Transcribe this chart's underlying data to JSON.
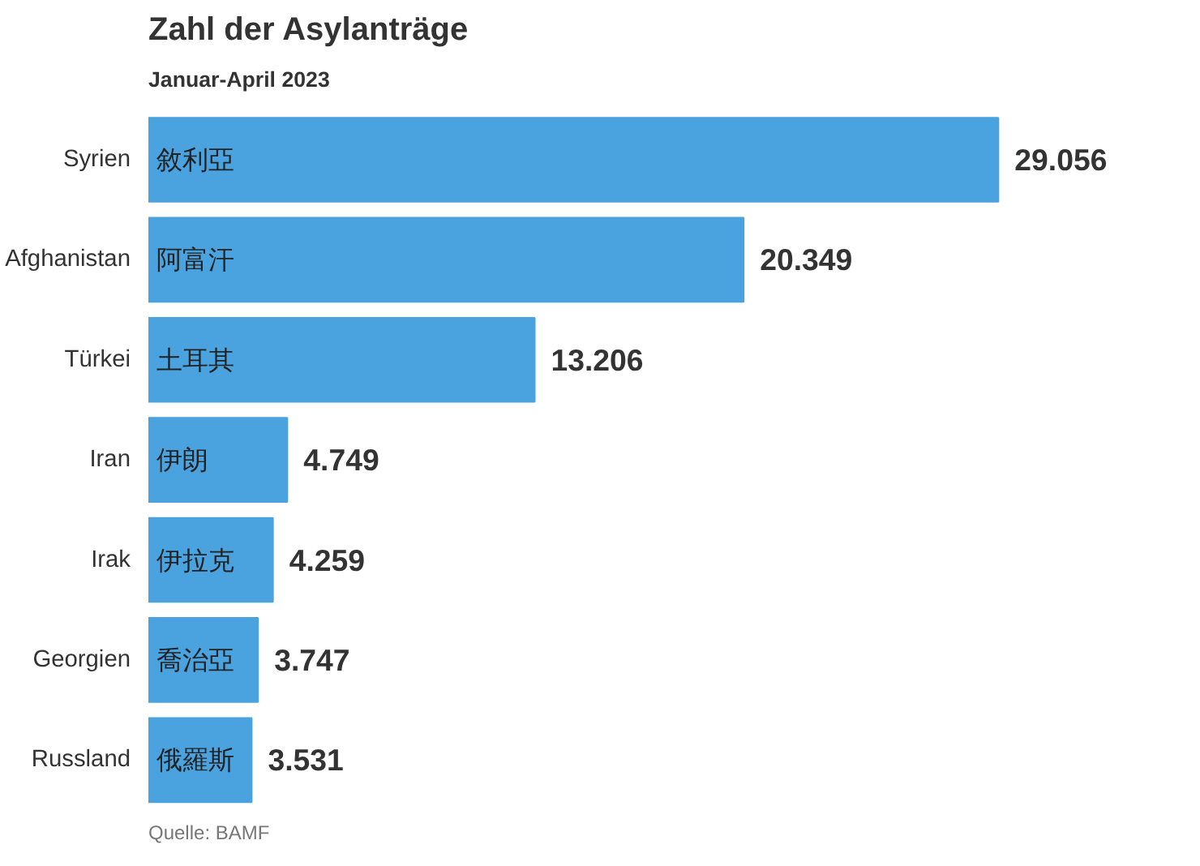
{
  "chart_data": {
    "type": "bar",
    "orientation": "horizontal",
    "title": "Zahl der Asylanträge",
    "subtitle": "Januar-April 2023",
    "categories": [
      "Syrien",
      "Afghanistan",
      "Türkei",
      "Iran",
      "Irak",
      "Georgien",
      "Russland"
    ],
    "values": [
      29056,
      20349,
      13206,
      4749,
      4259,
      3747,
      3531
    ],
    "value_labels": [
      "29.056",
      "20.349",
      "13.206",
      "4.749",
      "4.259",
      "3.747",
      "3.531"
    ],
    "color": "#4aa3df",
    "grid": false,
    "annotations": [
      {
        "text": "敘利亞",
        "y": "Syrien"
      },
      {
        "text": "阿富汗",
        "y": "Afghanistan"
      },
      {
        "text": "土耳其",
        "y": "Türkei"
      },
      {
        "text": "伊朗",
        "y": "Iran"
      },
      {
        "text": "伊拉克",
        "y": "Irak"
      },
      {
        "text": "喬治亞",
        "y": "Georgien"
      },
      {
        "text": "俄羅斯",
        "y": "Russland"
      },
      "Quelle: BAMF"
    ]
  }
}
